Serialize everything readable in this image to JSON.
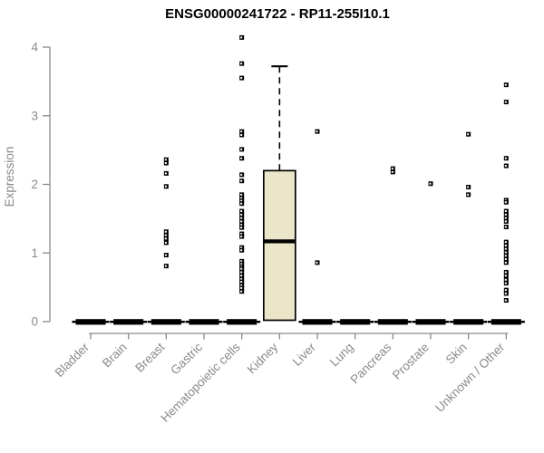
{
  "chart_data": {
    "type": "boxplot",
    "title": "ENSG00000241722 - RP11-255I10.1",
    "ylabel": "Expression",
    "xlabel": "",
    "ylim": [
      0,
      4
    ],
    "yticks": [
      0,
      1,
      2,
      3,
      4
    ],
    "grid": false,
    "legend": "none",
    "box_fill_color": "#EBE6C9",
    "box_stroke_color": "#000000",
    "axis_color": "#8a8a8a",
    "tick_label_color": "#8a8a8a",
    "categories": [
      "Bladder",
      "Brain",
      "Breast",
      "Gastric",
      "Hematopoietic cells",
      "Kidney",
      "Liver",
      "Lung",
      "Pancreas",
      "Prostate",
      "Skin",
      "Unknown / Other"
    ],
    "boxes": [
      {
        "category": "Bladder",
        "q1": 0,
        "median": 0,
        "q3": 0,
        "whisker_low": 0,
        "whisker_high": 0,
        "outliers": []
      },
      {
        "category": "Brain",
        "q1": 0,
        "median": 0,
        "q3": 0,
        "whisker_low": 0,
        "whisker_high": 0,
        "outliers": []
      },
      {
        "category": "Breast",
        "q1": 0,
        "median": 0,
        "q3": 0,
        "whisker_low": 0,
        "whisker_high": 0,
        "outliers": [
          2.36,
          2.31,
          2.16,
          1.97,
          1.31,
          1.26,
          1.21,
          1.15,
          0.97,
          0.81
        ]
      },
      {
        "category": "Gastric",
        "q1": 0,
        "median": 0,
        "q3": 0,
        "whisker_low": 0,
        "whisker_high": 0,
        "outliers": []
      },
      {
        "category": "Hematopoietic cells",
        "q1": 0,
        "median": 0,
        "q3": 0,
        "whisker_low": 0,
        "whisker_high": 0,
        "outliers": [
          4.14,
          3.76,
          3.55,
          2.77,
          2.72,
          2.51,
          2.38,
          2.14,
          2.05,
          1.85,
          1.8,
          1.76,
          1.72,
          1.61,
          1.56,
          1.51,
          1.46,
          1.41,
          1.37,
          1.28,
          1.24,
          1.08,
          1.04,
          0.88,
          0.84,
          0.8,
          0.77,
          0.72,
          0.67,
          0.62,
          0.58,
          0.53,
          0.49,
          0.44
        ]
      },
      {
        "category": "Kidney",
        "q1": 0.02,
        "median": 1.17,
        "q3": 2.2,
        "whisker_low": 0.02,
        "whisker_high": 3.72,
        "outliers": []
      },
      {
        "category": "Liver",
        "q1": 0,
        "median": 0,
        "q3": 0,
        "whisker_low": 0,
        "whisker_high": 0,
        "outliers": [
          2.77,
          0.86
        ]
      },
      {
        "category": "Lung",
        "q1": 0,
        "median": 0,
        "q3": 0,
        "whisker_low": 0,
        "whisker_high": 0,
        "outliers": []
      },
      {
        "category": "Pancreas",
        "q1": 0,
        "median": 0,
        "q3": 0,
        "whisker_low": 0,
        "whisker_high": 0,
        "outliers": [
          2.23,
          2.18
        ]
      },
      {
        "category": "Prostate",
        "q1": 0,
        "median": 0,
        "q3": 0,
        "whisker_low": 0,
        "whisker_high": 0,
        "outliers": [
          2.01
        ]
      },
      {
        "category": "Skin",
        "q1": 0,
        "median": 0,
        "q3": 0,
        "whisker_low": 0,
        "whisker_high": 0,
        "outliers": [
          2.73,
          1.96,
          1.85
        ]
      },
      {
        "category": "Unknown / Other",
        "q1": 0,
        "median": 0,
        "q3": 0,
        "whisker_low": 0,
        "whisker_high": 0,
        "outliers": [
          3.45,
          3.2,
          2.38,
          2.27,
          1.77,
          1.74,
          1.61,
          1.56,
          1.51,
          1.46,
          1.38,
          1.16,
          1.11,
          1.06,
          1.01,
          0.96,
          0.91,
          0.86,
          0.72,
          0.67,
          0.61,
          0.56,
          0.46,
          0.41,
          0.31
        ]
      }
    ]
  }
}
